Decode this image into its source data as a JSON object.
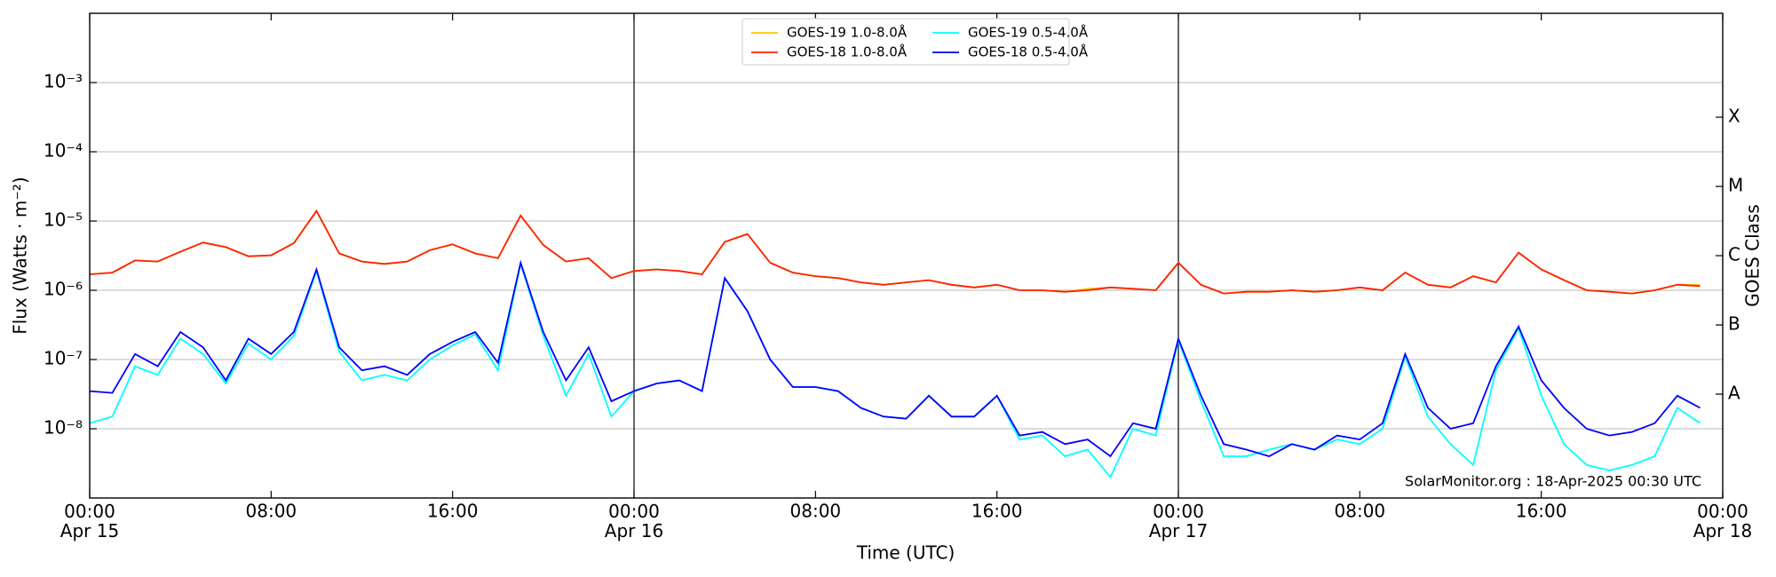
{
  "chart_data": {
    "type": "line",
    "x_label": "Time (UTC)",
    "y_label": "Flux (Watts · m⁻²)",
    "y2_label": "GOES Class",
    "annotation": "SolarMonitor.org : 18-Apr-2025 00:30 UTC",
    "yscale": "log",
    "grid": true,
    "legend": "upper center",
    "xlim": [
      0,
      72
    ],
    "xticks": [
      {
        "value": 0,
        "label": "00:00\nApr 15"
      },
      {
        "value": 8,
        "label": "08:00"
      },
      {
        "value": 16,
        "label": "16:00"
      },
      {
        "value": 24,
        "label": "00:00\nApr 16"
      },
      {
        "value": 32,
        "label": "08:00"
      },
      {
        "value": 40,
        "label": "16:00"
      },
      {
        "value": 48,
        "label": "00:00\nApr 17"
      },
      {
        "value": 56,
        "label": "08:00"
      },
      {
        "value": 64,
        "label": "16:00"
      },
      {
        "value": 72,
        "label": "00:00\nApr 18"
      }
    ],
    "ylim": [
      1e-09,
      0.01
    ],
    "yticks": [
      {
        "value": 1e-08,
        "label": "10⁻⁸"
      },
      {
        "value": 1e-07,
        "label": "10⁻⁷"
      },
      {
        "value": 1e-06,
        "label": "10⁻⁶"
      },
      {
        "value": 1e-05,
        "label": "10⁻⁵"
      },
      {
        "value": 0.0001,
        "label": "10⁻⁴"
      },
      {
        "value": 0.001,
        "label": "10⁻³"
      }
    ],
    "y2lim": [
      1e-09,
      0.01
    ],
    "y2ticks": [
      {
        "value": 3.16e-08,
        "label": "A"
      },
      {
        "value": 3.16e-07,
        "label": "B"
      },
      {
        "value": 3.16e-06,
        "label": "C"
      },
      {
        "value": 3.16e-05,
        "label": "M"
      },
      {
        "value": 0.000316,
        "label": "X"
      }
    ],
    "x": [
      0,
      1,
      2,
      3,
      4,
      5,
      6,
      7,
      8,
      9,
      10,
      11,
      12,
      13,
      14,
      15,
      16,
      17,
      18,
      19,
      20,
      21,
      22,
      23,
      24,
      25,
      26,
      27,
      28,
      29,
      30,
      31,
      32,
      33,
      34,
      35,
      36,
      37,
      38,
      39,
      40,
      41,
      42,
      43,
      44,
      45,
      46,
      47,
      48,
      49,
      50,
      51,
      52,
      53,
      54,
      55,
      56,
      57,
      58,
      59,
      60,
      61,
      62,
      63,
      64,
      65,
      66,
      67,
      68,
      69,
      70,
      71
    ],
    "series": [
      {
        "name": "GOES-19 1.0-8.0Å",
        "color": "#ffc400",
        "values": [
          1.7e-06,
          1.8e-06,
          2.7e-06,
          2.6e-06,
          3.6e-06,
          4.9e-06,
          4.2e-06,
          3.1e-06,
          3.2e-06,
          4.8e-06,
          1.4e-05,
          3.4e-06,
          2.6e-06,
          2.4e-06,
          2.6e-06,
          3.8e-06,
          4.6e-06,
          3.4e-06,
          2.9e-06,
          1.2e-05,
          4.5e-06,
          2.6e-06,
          2.9e-06,
          1.5e-06,
          1.9e-06,
          2e-06,
          1.9e-06,
          1.7e-06,
          5e-06,
          6.5e-06,
          2.5e-06,
          1.8e-06,
          1.6e-06,
          1.5e-06,
          1.3e-06,
          1.2e-06,
          1.3e-06,
          1.4e-06,
          1.2e-06,
          1.1e-06,
          1.2e-06,
          1e-06,
          1e-06,
          9.5e-07,
          1.05e-06,
          1.1e-06,
          1.05e-06,
          1e-06,
          2.5e-06,
          1.2e-06,
          9e-07,
          9.5e-07,
          9.5e-07,
          1e-06,
          9.5e-07,
          1e-06,
          1.1e-06,
          1e-06,
          1.8e-06,
          1.2e-06,
          1.1e-06,
          1.6e-06,
          1.3e-06,
          3.5e-06,
          2e-06,
          1.4e-06,
          1e-06,
          9.5e-07,
          9e-07,
          1e-06,
          1.2e-06,
          1.2e-06
        ]
      },
      {
        "name": "GOES-18 1.0-8.0Å",
        "color": "#ff2000",
        "values": [
          1.7e-06,
          1.8e-06,
          2.7e-06,
          2.6e-06,
          3.6e-06,
          4.9e-06,
          4.2e-06,
          3.1e-06,
          3.2e-06,
          4.8e-06,
          1.4e-05,
          3.4e-06,
          2.6e-06,
          2.4e-06,
          2.6e-06,
          3.8e-06,
          4.6e-06,
          3.4e-06,
          2.9e-06,
          1.2e-05,
          4.5e-06,
          2.6e-06,
          2.9e-06,
          1.5e-06,
          1.9e-06,
          2e-06,
          1.9e-06,
          1.7e-06,
          5e-06,
          6.5e-06,
          2.5e-06,
          1.8e-06,
          1.6e-06,
          1.5e-06,
          1.3e-06,
          1.2e-06,
          1.3e-06,
          1.4e-06,
          1.2e-06,
          1.1e-06,
          1.2e-06,
          1e-06,
          1e-06,
          9.5e-07,
          1e-06,
          1.1e-06,
          1.05e-06,
          1e-06,
          2.5e-06,
          1.2e-06,
          9e-07,
          9.5e-07,
          9.5e-07,
          1e-06,
          9.5e-07,
          1e-06,
          1.1e-06,
          1e-06,
          1.8e-06,
          1.2e-06,
          1.1e-06,
          1.6e-06,
          1.3e-06,
          3.5e-06,
          2e-06,
          1.4e-06,
          1e-06,
          9.5e-07,
          9e-07,
          1e-06,
          1.2e-06,
          1.15e-06
        ]
      },
      {
        "name": "GOES-19 0.5-4.0Å",
        "color": "#00ffff",
        "values": [
          1.2e-08,
          1.5e-08,
          8e-08,
          6e-08,
          2e-07,
          1.2e-07,
          4.5e-08,
          1.7e-07,
          1e-07,
          2.2e-07,
          1.9e-06,
          1.3e-07,
          5e-08,
          6e-08,
          5e-08,
          1e-07,
          1.6e-07,
          2.3e-07,
          7e-08,
          2.4e-06,
          2.2e-07,
          3e-08,
          1.2e-07,
          1.5e-08,
          3.5e-08,
          4.5e-08,
          5e-08,
          3.5e-08,
          1.5e-06,
          5e-07,
          1e-07,
          4e-08,
          4e-08,
          3.5e-08,
          2e-08,
          1.5e-08,
          1.4e-08,
          3e-08,
          1.5e-08,
          1.5e-08,
          3e-08,
          7e-09,
          8e-09,
          4e-09,
          5e-09,
          2e-09,
          1e-08,
          8e-09,
          1.9e-07,
          2.5e-08,
          4e-09,
          4e-09,
          5e-09,
          6e-09,
          5e-09,
          7e-09,
          6e-09,
          1e-08,
          1.1e-07,
          1.5e-08,
          6e-09,
          3e-09,
          7e-08,
          2.8e-07,
          3e-08,
          6e-09,
          3e-09,
          2.5e-09,
          3e-09,
          4e-09,
          2e-08,
          1.2e-08
        ]
      },
      {
        "name": "GOES-18 0.5-4.0Å",
        "color": "#0000ff",
        "values": [
          3.5e-08,
          3.3e-08,
          1.2e-07,
          8e-08,
          2.5e-07,
          1.5e-07,
          5e-08,
          2e-07,
          1.2e-07,
          2.5e-07,
          2e-06,
          1.5e-07,
          7e-08,
          8e-08,
          6e-08,
          1.2e-07,
          1.8e-07,
          2.5e-07,
          9e-08,
          2.5e-06,
          2.5e-07,
          5e-08,
          1.5e-07,
          2.5e-08,
          3.5e-08,
          4.5e-08,
          5e-08,
          3.5e-08,
          1.5e-06,
          5e-07,
          1e-07,
          4e-08,
          4e-08,
          3.5e-08,
          2e-08,
          1.5e-08,
          1.4e-08,
          3e-08,
          1.5e-08,
          1.5e-08,
          3e-08,
          8e-09,
          9e-09,
          6e-09,
          7e-09,
          4e-09,
          1.2e-08,
          1e-08,
          2e-07,
          3e-08,
          6e-09,
          5e-09,
          4e-09,
          6e-09,
          5e-09,
          8e-09,
          7e-09,
          1.2e-08,
          1.2e-07,
          2e-08,
          1e-08,
          1.2e-08,
          8e-08,
          3e-07,
          5e-08,
          2e-08,
          1e-08,
          8e-09,
          9e-09,
          1.2e-08,
          3e-08,
          2e-08
        ]
      }
    ]
  }
}
